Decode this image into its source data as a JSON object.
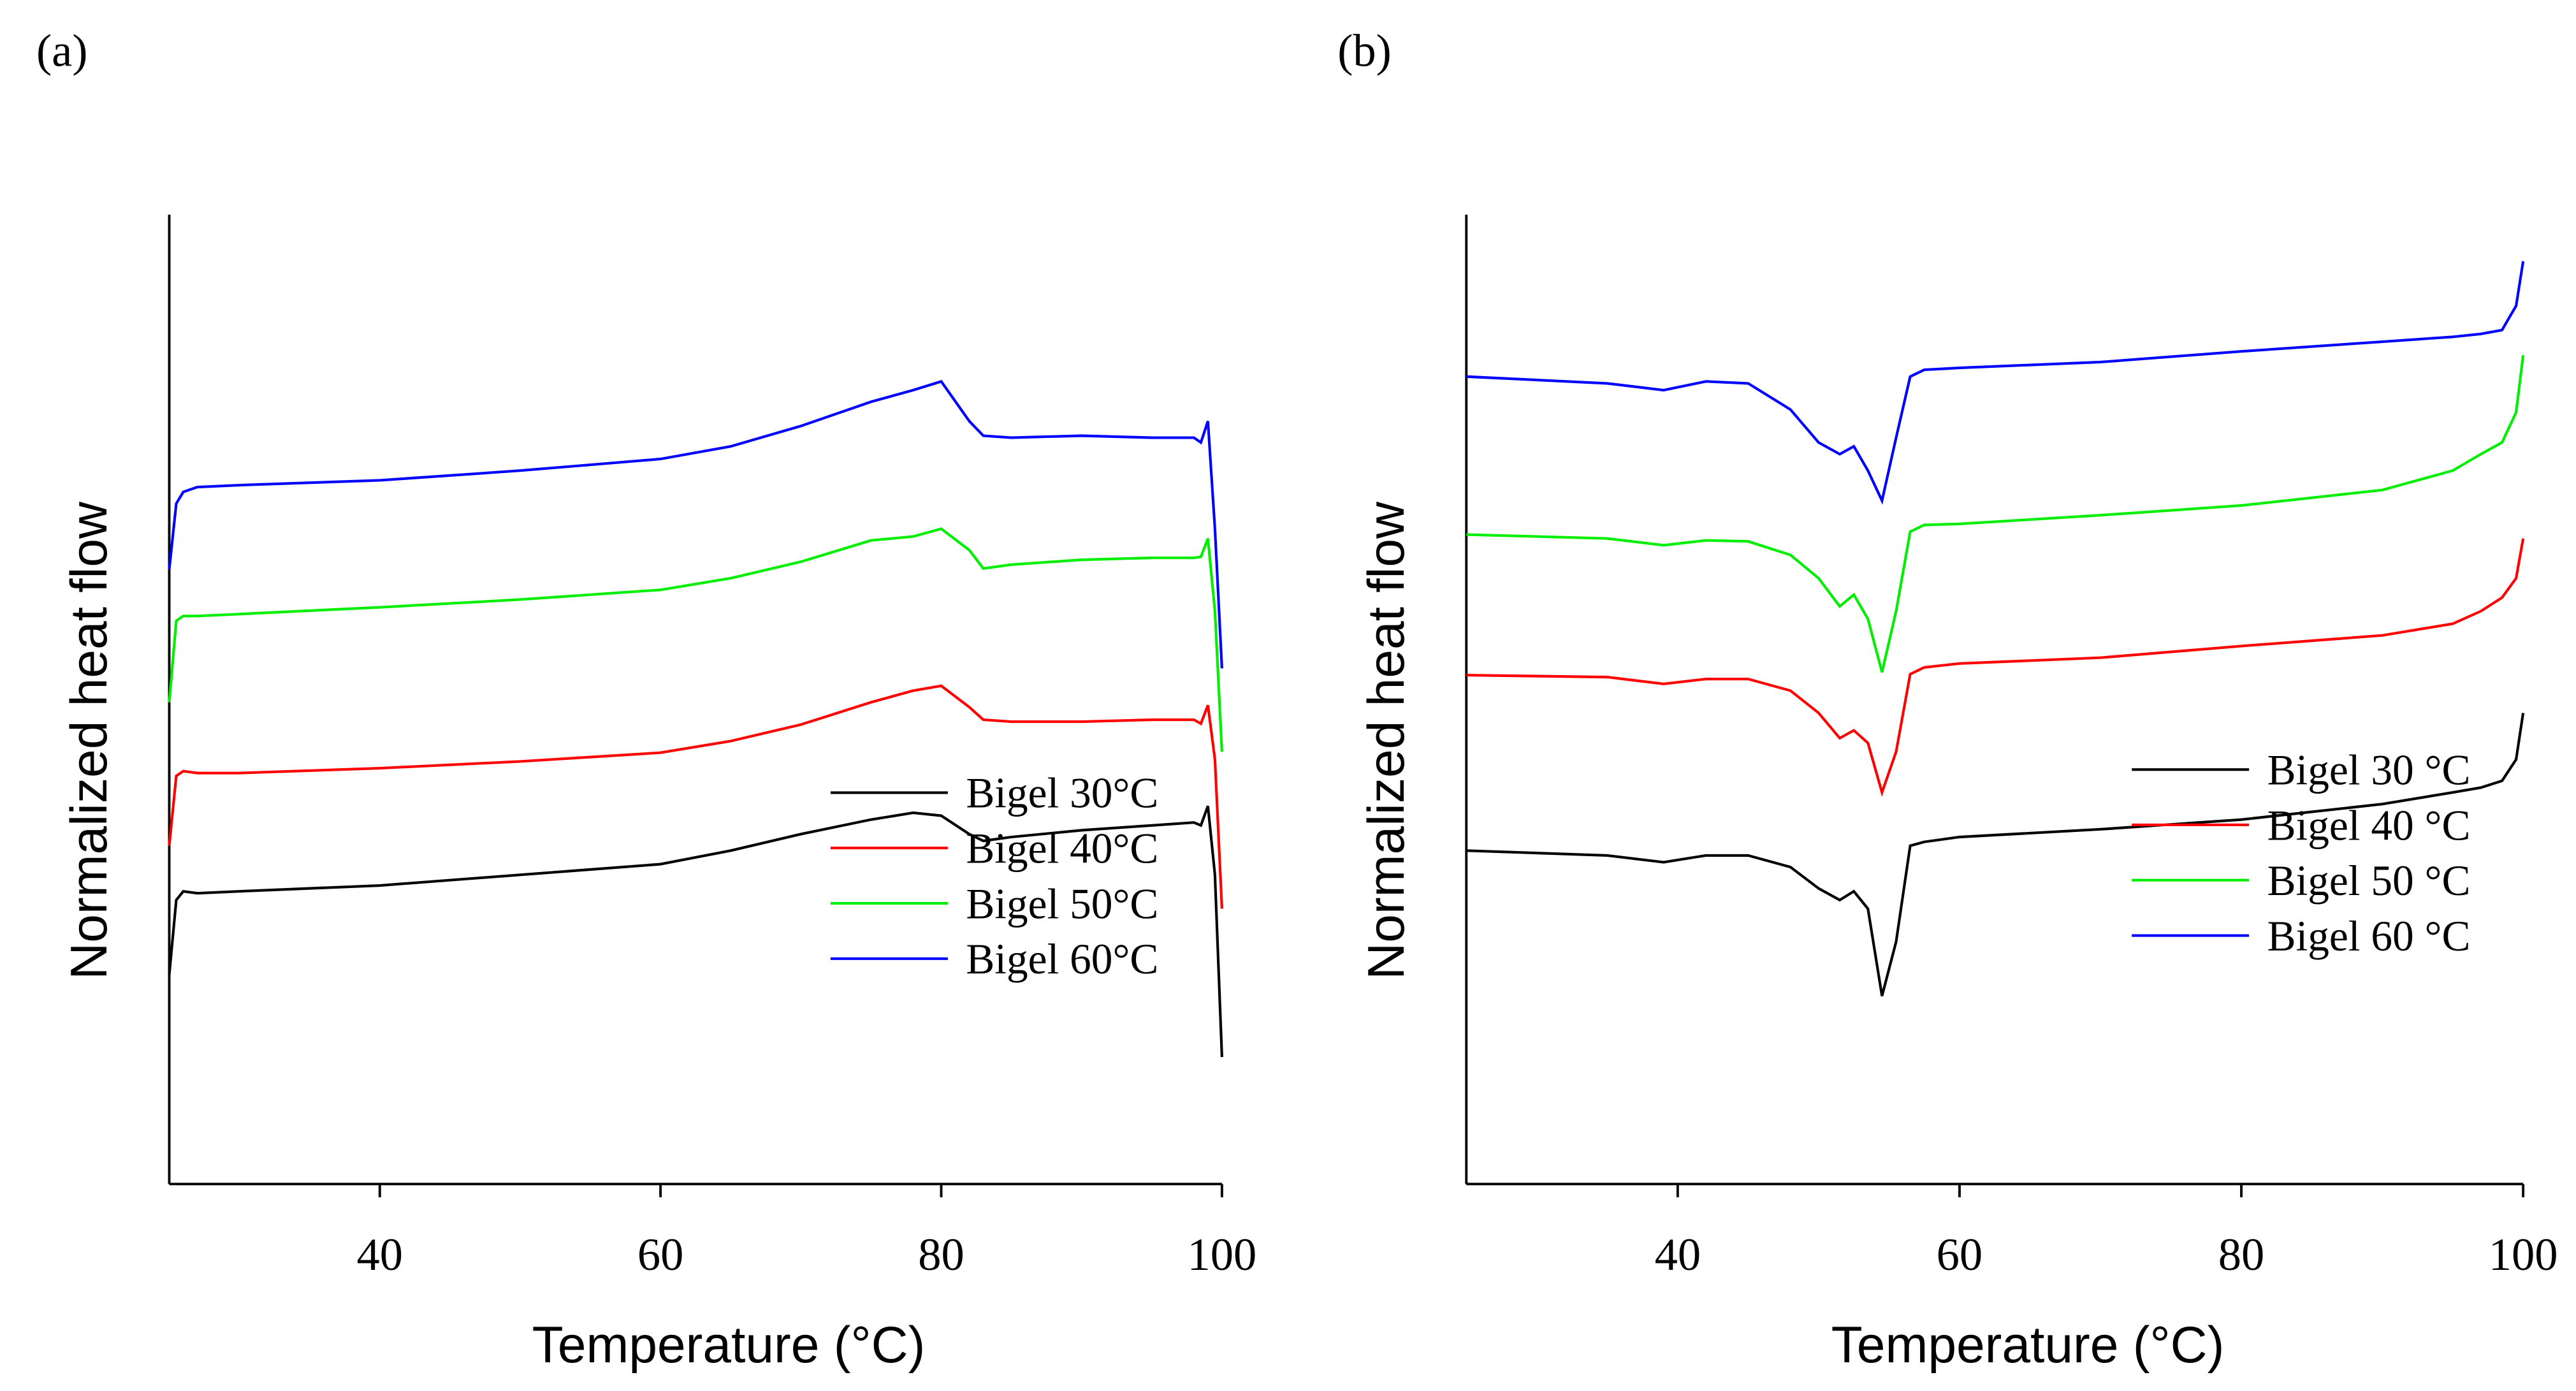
{
  "chart_data": [
    {
      "type": "line",
      "panel": "(a)",
      "xlabel": "Temperature (°C)",
      "ylabel": "Normalized heat flow",
      "xlim": [
        25,
        100
      ],
      "ylim": [
        0,
        100
      ],
      "xticks": [
        40,
        60,
        80,
        100
      ],
      "legend": "lower right",
      "x": [
        25,
        25.5,
        26,
        27,
        30,
        40,
        50,
        60,
        65,
        70,
        75,
        78,
        80,
        82,
        83,
        85,
        90,
        95,
        98,
        98.5,
        99,
        99.5,
        100
      ],
      "series": [
        {
          "name": "Bigel 30°C",
          "color": "#000000",
          "values": [
            21.6,
            29.3,
            30.2,
            30.0,
            30.2,
            30.8,
            31.9,
            33.0,
            34.4,
            36.1,
            37.6,
            38.3,
            38.0,
            36.1,
            35.4,
            35.8,
            36.5,
            37.0,
            37.3,
            37.0,
            39.0,
            31.9,
            13.1
          ]
        },
        {
          "name": "Bigel 40°C",
          "color": "#ff0000",
          "values": [
            34.9,
            42.1,
            42.6,
            42.4,
            42.4,
            42.9,
            43.6,
            44.5,
            45.7,
            47.4,
            49.7,
            50.9,
            51.4,
            49.2,
            47.9,
            47.7,
            47.7,
            47.9,
            47.9,
            47.5,
            49.4,
            43.8,
            28.4
          ]
        },
        {
          "name": "Bigel 50°C",
          "color": "#00ee00",
          "values": [
            49.7,
            58.1,
            58.6,
            58.6,
            58.8,
            59.5,
            60.3,
            61.3,
            62.5,
            64.2,
            66.4,
            66.8,
            67.6,
            65.4,
            63.5,
            63.9,
            64.4,
            64.6,
            64.6,
            64.7,
            66.6,
            59.1,
            44.6
          ]
        },
        {
          "name": "Bigel 60°C",
          "color": "#0000ff",
          "values": [
            63.4,
            70.2,
            71.4,
            71.9,
            72.1,
            72.6,
            73.6,
            74.8,
            76.1,
            78.2,
            80.7,
            81.9,
            82.8,
            78.7,
            77.2,
            77.0,
            77.2,
            77.0,
            77.0,
            76.5,
            78.7,
            67.6,
            53.2
          ]
        }
      ]
    },
    {
      "type": "line",
      "panel": "(b)",
      "xlabel": "Temperature (°C)",
      "ylabel": "Normalized heat flow",
      "xlim": [
        25,
        100
      ],
      "ylim": [
        0,
        100
      ],
      "xticks": [
        40,
        60,
        80,
        100
      ],
      "legend": "lower right",
      "x": [
        25,
        35,
        39,
        42,
        45,
        48,
        50,
        51.5,
        52.5,
        53.5,
        54.5,
        55.5,
        56.5,
        57.5,
        60,
        70,
        80,
        90,
        95,
        97,
        98.5,
        99.5,
        100
      ],
      "series": [
        {
          "name": "Bigel 30 °C",
          "color": "#000000",
          "values": [
            34.4,
            33.9,
            33.2,
            33.9,
            33.9,
            32.7,
            30.5,
            29.3,
            30.2,
            28.4,
            19.4,
            25.0,
            34.9,
            35.3,
            35.8,
            36.6,
            37.6,
            39.2,
            40.4,
            40.9,
            41.6,
            43.8,
            48.6
          ]
        },
        {
          "name": "Bigel 40 °C",
          "color": "#ff0000",
          "values": [
            52.5,
            52.3,
            51.6,
            52.1,
            52.1,
            50.9,
            48.6,
            46.0,
            46.8,
            45.5,
            40.4,
            44.6,
            52.6,
            53.3,
            53.7,
            54.3,
            55.5,
            56.6,
            57.8,
            59.1,
            60.5,
            62.5,
            66.6
          ]
        },
        {
          "name": "Bigel 50 °C",
          "color": "#00ee00",
          "values": [
            67.0,
            66.6,
            65.9,
            66.4,
            66.3,
            64.9,
            62.5,
            59.6,
            60.8,
            58.3,
            52.8,
            59.1,
            67.3,
            68.0,
            68.1,
            69.0,
            70.0,
            71.6,
            73.6,
            75.3,
            76.5,
            79.6,
            85.5
          ]
        },
        {
          "name": "Bigel 60 °C",
          "color": "#0000ff",
          "values": [
            83.3,
            82.6,
            81.9,
            82.8,
            82.6,
            79.9,
            76.5,
            75.3,
            76.1,
            73.6,
            70.5,
            77.0,
            83.3,
            84.0,
            84.2,
            84.8,
            85.9,
            86.9,
            87.4,
            87.7,
            88.1,
            90.6,
            95.2
          ]
        }
      ]
    }
  ]
}
